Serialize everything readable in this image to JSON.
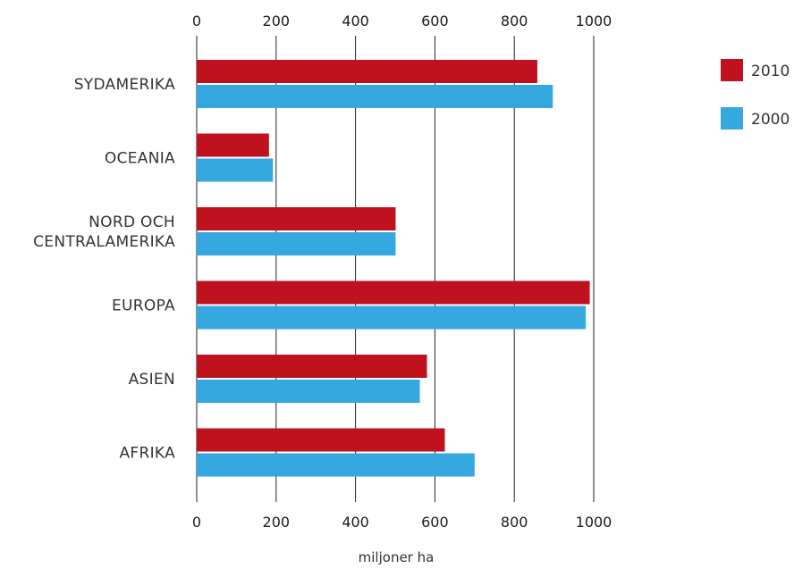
{
  "chart_data": {
    "type": "bar",
    "orientation": "horizontal",
    "categories": [
      [
        "SYDAMERIKA"
      ],
      [
        "OCEANIA"
      ],
      [
        "NORD OCH",
        "CENTRALAMERIKA"
      ],
      [
        "EUROPA"
      ],
      [
        "ASIEN"
      ],
      [
        "AFRIKA"
      ]
    ],
    "series": [
      {
        "name": "2010",
        "color": "#c0111f",
        "values": [
          858,
          182,
          501,
          990,
          580,
          625
        ]
      },
      {
        "name": "2000",
        "color": "#35a8e0",
        "values": [
          897,
          192,
          501,
          980,
          562,
          700
        ]
      }
    ],
    "xlim": [
      0,
      1000
    ],
    "xticks": [
      "0",
      "200",
      "400",
      "600",
      "800",
      "1000"
    ],
    "xlabel": "miljoner ha",
    "ylabel": "",
    "title": "",
    "grid": "vertical",
    "tick_labels_position": "top and bottom",
    "legend_position": "top-right"
  }
}
